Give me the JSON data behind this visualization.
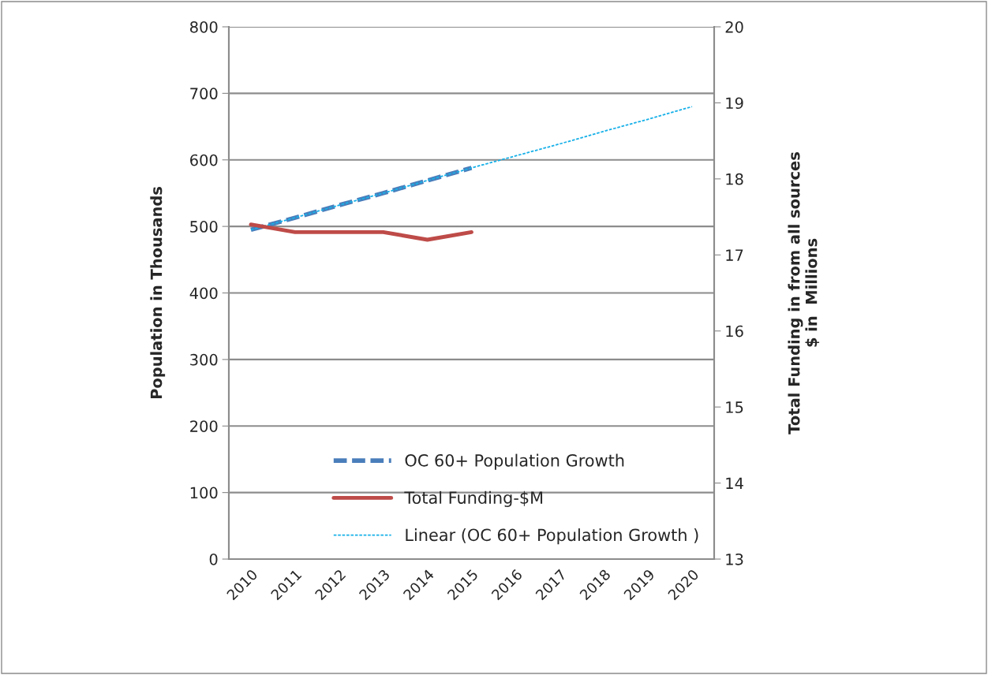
{
  "chart_data": {
    "type": "line",
    "categories": [
      "2010",
      "2011",
      "2012",
      "2013",
      "2014",
      "2015",
      "2016",
      "2017",
      "2018",
      "2019",
      "2020"
    ],
    "ylabel": "Population in Thousands",
    "y2label": "Total Funding in from all sources\n$ in  Millions",
    "series": [
      {
        "name": "OC 60+ Population Growth",
        "color": "#4a7ebb",
        "values": [
          495,
          513,
          532,
          550,
          569,
          588,
          null,
          null,
          null,
          null,
          null
        ],
        "line_style": "dashed"
      },
      {
        "name": "Total Funding-$M",
        "color": "#be4b48",
        "values": [
          17.4,
          17.3,
          17.3,
          17.3,
          17.2,
          17.3,
          null,
          null,
          null,
          null,
          null
        ],
        "axis": "y2",
        "line_style": "solid"
      },
      {
        "name": "Linear (OC 60+ Population Growth )",
        "color": "#17b0e8",
        "values": [
          495,
          513,
          532,
          550,
          569,
          588,
          606,
          624,
          643,
          661,
          680
        ],
        "line_style": "dotted"
      }
    ],
    "ylim": [
      0,
      800
    ],
    "yticks": [
      0,
      100,
      200,
      300,
      400,
      500,
      600,
      700,
      800
    ],
    "y2lim": [
      13,
      20
    ],
    "y2ticks": [
      13,
      14,
      15,
      16,
      17,
      18,
      19,
      20
    ],
    "grid": "y",
    "legend": "bottom right",
    "marker": "none"
  }
}
